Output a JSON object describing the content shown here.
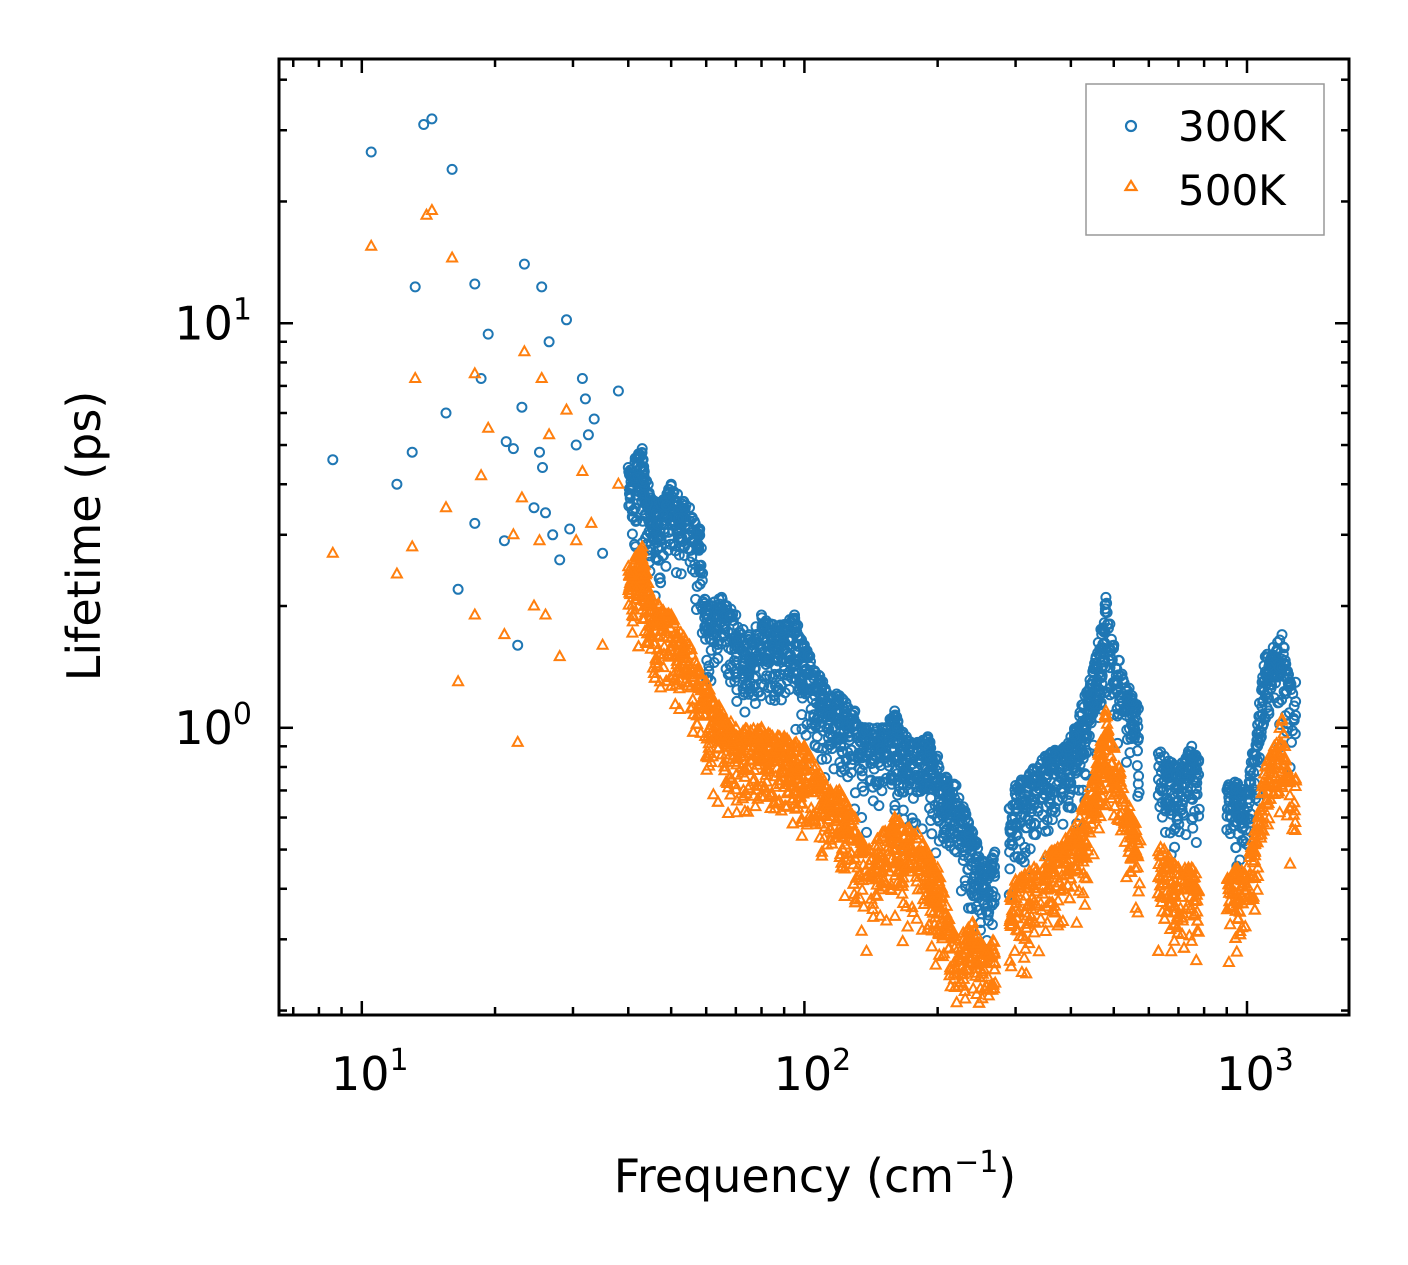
{
  "chart_data": {
    "type": "scatter",
    "title": "",
    "xlabel": "Frequency (cm",
    "xlabel_sup": "−1",
    "xlabel_end": ")",
    "ylabel": "Lifetime (ps)",
    "xscale": "log",
    "yscale": "log",
    "xlim": [
      6.5,
      1700
    ],
    "ylim": [
      0.195,
      45
    ],
    "x_ticks": [
      {
        "value": 10,
        "base": "10",
        "exp": "1"
      },
      {
        "value": 100,
        "base": "10",
        "exp": "2"
      },
      {
        "value": 1000,
        "base": "10",
        "exp": "3"
      }
    ],
    "y_ticks": [
      {
        "value": 1,
        "base": "10",
        "exp": "0"
      },
      {
        "value": 10,
        "base": "10",
        "exp": "1"
      }
    ],
    "legend_position": "top-right",
    "series": [
      {
        "name": "300K",
        "color": "#1f77b4",
        "marker": "circle",
        "sample_points": [
          [
            8.6,
            4.6
          ],
          [
            10.5,
            26.5
          ],
          [
            12.0,
            4.0
          ],
          [
            13.0,
            4.8
          ],
          [
            13.2,
            12.3
          ],
          [
            13.8,
            31.0
          ],
          [
            14.4,
            32.0
          ],
          [
            15.5,
            6.0
          ],
          [
            16.0,
            24.0
          ],
          [
            16.5,
            2.2
          ],
          [
            18.0,
            12.5
          ],
          [
            18.0,
            3.2
          ],
          [
            18.6,
            7.3
          ],
          [
            19.3,
            9.4
          ],
          [
            21.0,
            2.9
          ],
          [
            21.2,
            5.1
          ],
          [
            22.0,
            4.9
          ],
          [
            22.5,
            1.6
          ],
          [
            23.0,
            6.2
          ],
          [
            23.3,
            14.0
          ],
          [
            24.5,
            3.5
          ],
          [
            25.2,
            4.8
          ],
          [
            25.5,
            12.3
          ],
          [
            25.6,
            4.4
          ],
          [
            26.0,
            3.4
          ],
          [
            26.5,
            9.0
          ],
          [
            27.0,
            3.0
          ],
          [
            28.0,
            2.6
          ],
          [
            29.0,
            10.2
          ],
          [
            29.5,
            3.1
          ],
          [
            30.5,
            5.0
          ],
          [
            31.5,
            7.3
          ],
          [
            32.0,
            6.5
          ],
          [
            32.5,
            5.3
          ],
          [
            33.5,
            5.8
          ],
          [
            35.0,
            2.7
          ],
          [
            38.0,
            6.8
          ],
          [
            40.0,
            4.4
          ],
          [
            43.0,
            4.9
          ],
          [
            45.0,
            3.7
          ],
          [
            47.0,
            3.6
          ],
          [
            50.0,
            4.0
          ],
          [
            55.0,
            3.5
          ],
          [
            58.0,
            3.1
          ],
          [
            60.0,
            2.0
          ],
          [
            65.0,
            2.1
          ],
          [
            70.0,
            1.9
          ],
          [
            75.0,
            1.7
          ],
          [
            80.0,
            1.9
          ],
          [
            85.0,
            1.8
          ],
          [
            90.0,
            1.8
          ],
          [
            95.0,
            1.9
          ],
          [
            100.0,
            1.6
          ],
          [
            110.0,
            1.3
          ],
          [
            120.0,
            1.2
          ],
          [
            130.0,
            1.1
          ],
          [
            140.0,
            1.0
          ],
          [
            150.0,
            1.0
          ],
          [
            160.0,
            1.1
          ],
          [
            170.0,
            0.95
          ],
          [
            180.0,
            0.92
          ],
          [
            190.0,
            0.95
          ],
          [
            200.0,
            0.85
          ],
          [
            210.0,
            0.75
          ],
          [
            220.0,
            0.72
          ],
          [
            240.0,
            0.55
          ],
          [
            260.0,
            0.45
          ],
          [
            300.0,
            0.72
          ],
          [
            350.0,
            0.85
          ],
          [
            400.0,
            0.95
          ],
          [
            450.0,
            1.4
          ],
          [
            480.0,
            2.1
          ],
          [
            500.0,
            1.6
          ],
          [
            550.0,
            1.2
          ],
          [
            650.0,
            0.85
          ],
          [
            700.0,
            0.8
          ],
          [
            750.0,
            0.9
          ],
          [
            1000.0,
            0.7
          ],
          [
            1100.0,
            1.5
          ],
          [
            1200.0,
            1.7
          ],
          [
            1250.0,
            1.3
          ]
        ]
      },
      {
        "name": "500K",
        "color": "#ff7f0e",
        "marker": "triangle",
        "sample_points": [
          [
            8.6,
            2.7
          ],
          [
            10.5,
            15.5
          ],
          [
            12.0,
            2.4
          ],
          [
            13.0,
            2.8
          ],
          [
            13.2,
            7.3
          ],
          [
            14.0,
            18.5
          ],
          [
            14.4,
            19.0
          ],
          [
            15.5,
            3.5
          ],
          [
            16.0,
            14.5
          ],
          [
            16.5,
            1.3
          ],
          [
            18.0,
            7.5
          ],
          [
            18.0,
            1.9
          ],
          [
            18.6,
            4.2
          ],
          [
            19.3,
            5.5
          ],
          [
            21.0,
            1.7
          ],
          [
            22.0,
            3.0
          ],
          [
            22.5,
            0.92
          ],
          [
            23.0,
            3.7
          ],
          [
            23.3,
            8.5
          ],
          [
            24.5,
            2.0
          ],
          [
            25.2,
            2.9
          ],
          [
            25.5,
            7.3
          ],
          [
            26.0,
            1.9
          ],
          [
            26.5,
            5.3
          ],
          [
            28.0,
            1.5
          ],
          [
            29.0,
            6.1
          ],
          [
            30.5,
            2.9
          ],
          [
            31.5,
            4.3
          ],
          [
            33.0,
            3.2
          ],
          [
            35.0,
            1.6
          ],
          [
            38.0,
            4.0
          ],
          [
            40.0,
            2.5
          ],
          [
            43.0,
            2.8
          ],
          [
            45.0,
            2.1
          ],
          [
            50.0,
            1.9
          ],
          [
            55.0,
            1.6
          ],
          [
            60.0,
            1.3
          ],
          [
            65.0,
            1.1
          ],
          [
            70.0,
            1.0
          ],
          [
            80.0,
            1.0
          ],
          [
            90.0,
            0.95
          ],
          [
            100.0,
            0.9
          ],
          [
            110.0,
            0.75
          ],
          [
            120.0,
            0.7
          ],
          [
            130.0,
            0.6
          ],
          [
            140.0,
            0.5
          ],
          [
            150.0,
            0.55
          ],
          [
            160.0,
            0.6
          ],
          [
            180.0,
            0.55
          ],
          [
            200.0,
            0.45
          ],
          [
            220.0,
            0.3
          ],
          [
            240.0,
            0.33
          ],
          [
            260.0,
            0.28
          ],
          [
            300.0,
            0.42
          ],
          [
            350.0,
            0.48
          ],
          [
            400.0,
            0.55
          ],
          [
            450.0,
            0.75
          ],
          [
            480.0,
            1.1
          ],
          [
            500.0,
            0.9
          ],
          [
            550.0,
            0.6
          ],
          [
            650.0,
            0.5
          ],
          [
            700.0,
            0.45
          ],
          [
            750.0,
            0.45
          ],
          [
            1000.0,
            0.45
          ],
          [
            1100.0,
            0.8
          ],
          [
            1200.0,
            1.05
          ],
          [
            1250.0,
            0.75
          ]
        ]
      }
    ]
  }
}
